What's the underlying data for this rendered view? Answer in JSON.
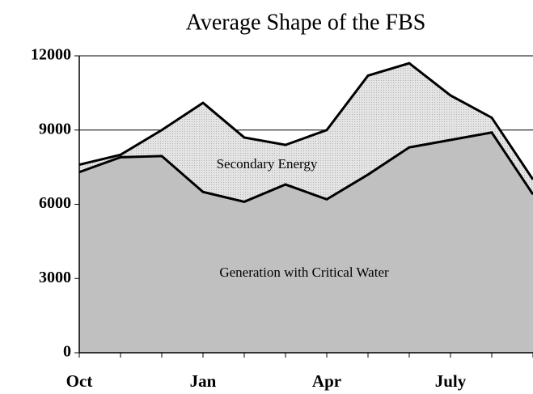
{
  "chart_data": {
    "type": "stacked-area",
    "title": "Average Shape of the FBS",
    "categories": [
      "Oct",
      null,
      null,
      "Jan",
      null,
      null,
      "Apr",
      null,
      null,
      "July",
      null,
      null
    ],
    "series": [
      {
        "name": "Generation with Critical Water",
        "color": "#c0c0c0",
        "values": [
          7300,
          7900,
          7950,
          6500,
          6100,
          6800,
          6200,
          7200,
          8300,
          8600,
          8900,
          6400
        ]
      },
      {
        "name": "Secondary Energy",
        "color": "#dcdcdc",
        "values": [
          300,
          100,
          1050,
          3600,
          2600,
          1600,
          2800,
          4000,
          3400,
          1800,
          600,
          600
        ]
      }
    ],
    "ylim": [
      0,
      12000
    ],
    "yticks": [
      0,
      3000,
      6000,
      9000,
      12000
    ],
    "grid": true
  }
}
